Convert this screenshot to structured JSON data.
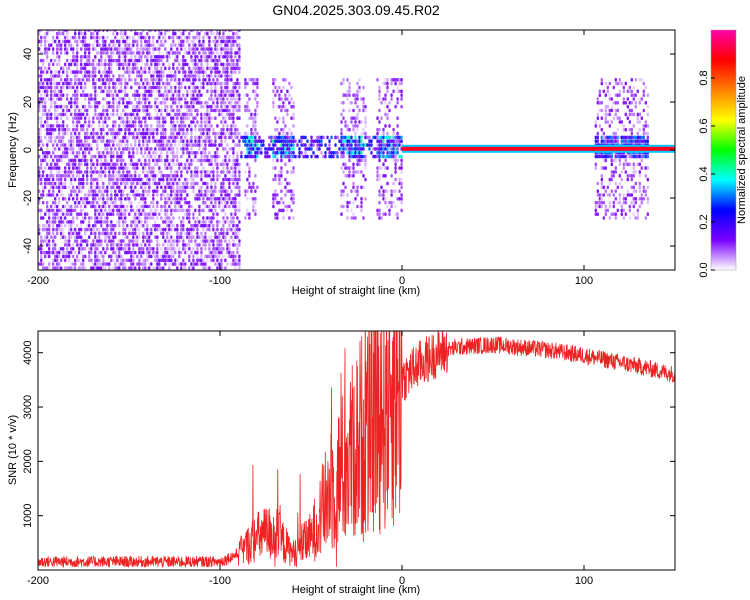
{
  "title": "GN04.2025.303.09.45.R02",
  "chart_data": [
    {
      "type": "heatmap",
      "xlabel": "Height of straight line (km)",
      "ylabel": "Frequency (Hz)",
      "xlim": [
        -200,
        150
      ],
      "ylim": [
        -50,
        50
      ],
      "xticks": [
        -200,
        -100,
        0,
        100
      ],
      "yticks": [
        -40,
        -20,
        0,
        20,
        40
      ],
      "colorbar": {
        "label": "Normalized spectral amplitude",
        "range": [
          0.0,
          1.0
        ],
        "ticks": [
          "0.0",
          "0.2",
          "0.4",
          "0.6",
          "0.8"
        ],
        "colors": [
          "#ffffff",
          "#7a00ff",
          "#0000ff",
          "#00ffff",
          "#00ff00",
          "#ffff00",
          "#ff7f00",
          "#ff0000",
          "#ff00aa"
        ]
      },
      "features": {
        "broadband_noise_region_km": [
          -200,
          -90
        ],
        "noise_bursts_km": [
          [
            -87,
            -80
          ],
          [
            -72,
            -60
          ],
          [
            -35,
            -20
          ],
          [
            -15,
            0
          ],
          [
            105,
            135
          ]
        ],
        "carrier_start_km": 0,
        "carrier_frequency_hz": 0.5,
        "carrier_amplitude": 0.9
      }
    },
    {
      "type": "line",
      "xlabel": "Height of straight line (km)",
      "ylabel": "SNR (10 * v/v)",
      "xlim": [
        -200,
        150
      ],
      "ylim": [
        0,
        4400
      ],
      "xticks": [
        -200,
        -100,
        0,
        100
      ],
      "yticks": [
        1000,
        2000,
        3000,
        4000
      ],
      "color": "#ee2222",
      "profile": [
        [
          -200,
          150
        ],
        [
          -100,
          150
        ],
        [
          -90,
          300
        ],
        [
          -80,
          600
        ],
        [
          -70,
          700
        ],
        [
          -60,
          300
        ],
        [
          -50,
          600
        ],
        [
          -40,
          1400
        ],
        [
          -30,
          2000
        ],
        [
          -20,
          2600
        ],
        [
          -10,
          3100
        ],
        [
          -5,
          3400
        ],
        [
          0,
          3500
        ],
        [
          10,
          3800
        ],
        [
          20,
          4000
        ],
        [
          30,
          4100
        ],
        [
          50,
          4150
        ],
        [
          80,
          4050
        ],
        [
          100,
          3950
        ],
        [
          130,
          3750
        ],
        [
          150,
          3600
        ]
      ]
    }
  ]
}
